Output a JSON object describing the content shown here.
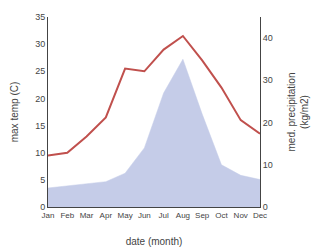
{
  "chart_data": {
    "type": "line",
    "categories": [
      "Jan",
      "Feb",
      "Mar",
      "Apr",
      "May",
      "Jun",
      "Jul",
      "Aug",
      "Sep",
      "Oct",
      "Nov",
      "Dec"
    ],
    "xlabel": "date (month)",
    "ylabel": "max temp (C)",
    "y2label": "med. precipitation\n(kg/m2)",
    "series": [
      {
        "type": "line",
        "color": "#c0504d",
        "values": [
          9.5,
          10.0,
          13.0,
          16.5,
          25.5,
          25.0,
          29.0,
          31.5,
          27.0,
          22.0,
          16.0,
          13.5
        ]
      },
      {
        "type": "area",
        "color": "#c5cce8",
        "axis": "y2",
        "values": [
          4.5,
          5.0,
          5.5,
          6.0,
          8.0,
          14.0,
          27.0,
          35.0,
          22.0,
          10.0,
          7.5,
          6.5
        ]
      }
    ],
    "ylim": [
      0,
      35
    ],
    "yticks": [
      0,
      5,
      10,
      15,
      20,
      25,
      30,
      35
    ],
    "y2lim": [
      0,
      45
    ],
    "y2ticks": [
      0,
      10,
      20,
      30,
      40
    ],
    "grid": false
  }
}
